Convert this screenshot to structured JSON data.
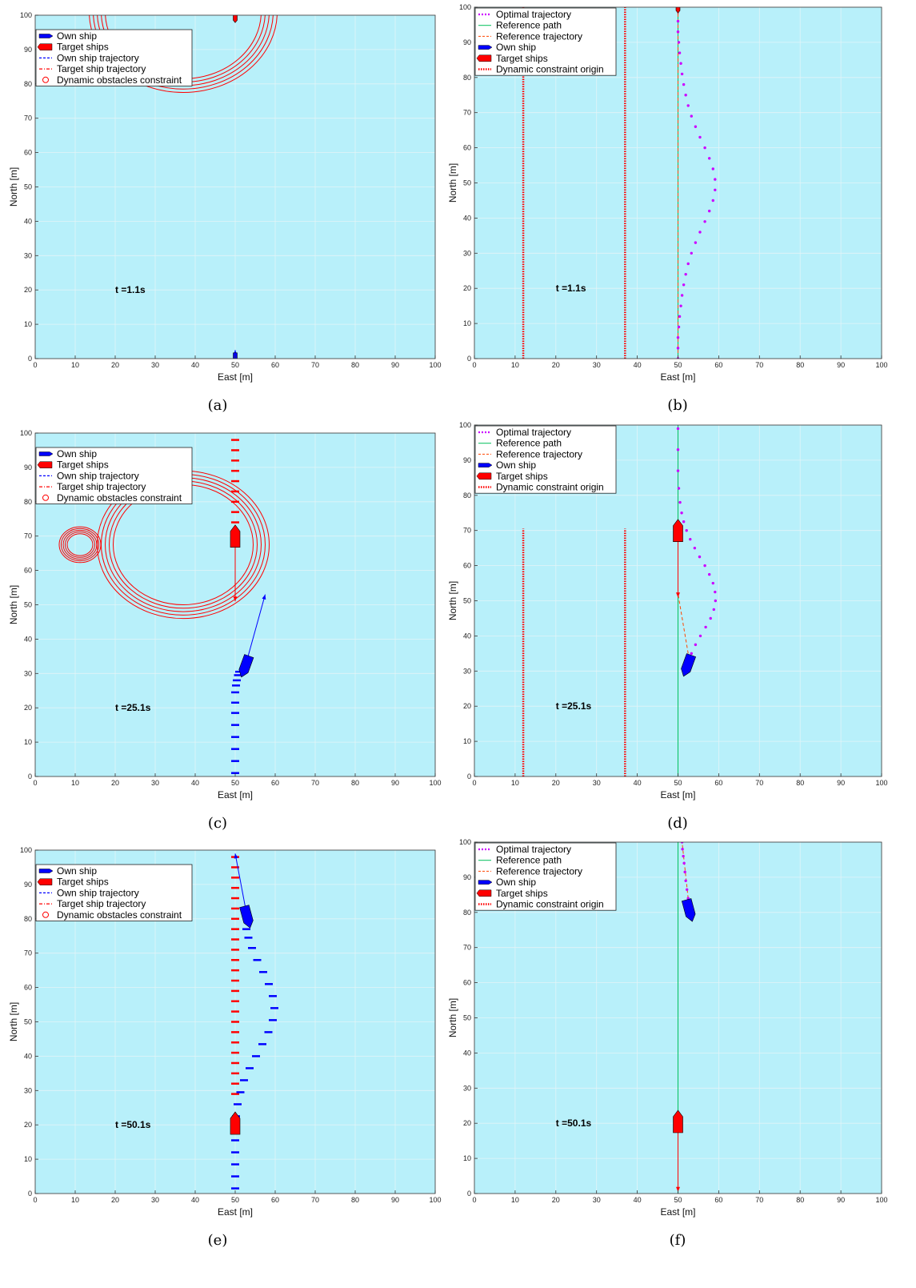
{
  "chart_data": [
    {
      "id": "a",
      "type": "scatter",
      "caption": "(a)",
      "time_label": "t =1.1s",
      "xlabel": "East [m]",
      "ylabel": "North [m]",
      "xlim": [
        0,
        100
      ],
      "ylim": [
        0,
        100
      ],
      "ticks": [
        0,
        10,
        20,
        30,
        40,
        50,
        60,
        70,
        80,
        90,
        100
      ],
      "grid": true,
      "legend": [
        "Own ship",
        "Target ships",
        "Own ship trajectory",
        "Target ship trajectory",
        "Dynamic obstacles constraint"
      ],
      "own_ship": {
        "x": 50,
        "y": 0.5,
        "arrow_to": [
          50,
          2.5
        ],
        "shape": "small"
      },
      "target_ship": {
        "x": 50,
        "y": 99,
        "arrow_to": [
          50,
          98
        ],
        "shape": "small"
      },
      "own_trajectory": [],
      "target_trajectory": [],
      "constraint_circles": [
        {
          "cx": 37,
          "cy": 101,
          "r": [
            19.5,
            20.5,
            21.5,
            22.5,
            23.5
          ],
          "squash": 1.0
        }
      ]
    },
    {
      "id": "b",
      "type": "line",
      "caption": "(b)",
      "time_label": "t =1.1s",
      "xlabel": "East [m]",
      "ylabel": "North [m]",
      "xlim": [
        0,
        100
      ],
      "ylim": [
        0,
        100
      ],
      "ticks": [
        0,
        10,
        20,
        30,
        40,
        50,
        60,
        70,
        80,
        90,
        100
      ],
      "grid": true,
      "legend": [
        "Optimal trajectory",
        "Reference path",
        "Reference trajectory",
        "Own ship",
        "Target ships",
        "Dynamic constraint origin"
      ],
      "optimal_trajectory": {
        "x": [
          50,
          50,
          50,
          50.2,
          50.4,
          50.7,
          51,
          51.4,
          51.9,
          52.5,
          53.3,
          54.3,
          55.4,
          56.6,
          57.7,
          58.6,
          59.1,
          59.1,
          58.6,
          57.7,
          56.6,
          55.4,
          54.3,
          53.3,
          52.5,
          51.9,
          51.4,
          51,
          50.7,
          50.4,
          50.2,
          50,
          50,
          50
        ],
        "y": [
          0,
          3,
          6,
          9,
          12,
          15,
          18,
          21,
          24,
          27,
          30,
          33,
          36,
          39,
          42,
          45,
          48,
          51,
          54,
          57,
          60,
          63,
          66,
          69,
          72,
          75,
          78,
          81,
          84,
          87,
          90,
          93,
          96,
          99
        ]
      },
      "reference_path": {
        "x": [
          50,
          50
        ],
        "y": [
          0,
          100
        ]
      },
      "reference_trajectory": {
        "x": [
          50,
          50
        ],
        "y": [
          0,
          100
        ]
      },
      "own_ship": null,
      "target_ship": {
        "x": 50,
        "y": 99.5,
        "arrow_to": [
          50,
          98
        ],
        "shape": "small"
      },
      "constraint_origin_lines": [
        {
          "x": 12,
          "y0": 0,
          "y1": 100
        },
        {
          "x": 37,
          "y0": 0,
          "y1": 100
        }
      ]
    },
    {
      "id": "c",
      "type": "scatter",
      "caption": "(c)",
      "time_label": "t =25.1s",
      "xlabel": "East [m]",
      "ylabel": "North [m]",
      "xlim": [
        0,
        100
      ],
      "ylim": [
        0,
        100
      ],
      "ticks": [
        0,
        10,
        20,
        30,
        40,
        50,
        60,
        70,
        80,
        90,
        100
      ],
      "grid": true,
      "legend": [
        "Own ship",
        "Target ships",
        "Own ship trajectory",
        "Target ship trajectory",
        "Dynamic obstacles constraint"
      ],
      "own_ship": {
        "x": 52.5,
        "y": 32,
        "heading_deg": 20,
        "arrow_to": [
          57.5,
          53
        ],
        "shape": "big"
      },
      "target_ship": {
        "x": 50,
        "y": 70,
        "heading_deg": 180,
        "arrow_to": [
          50,
          51
        ],
        "shape": "big"
      },
      "own_trajectory": {
        "x": [
          50,
          50,
          50,
          50,
          50,
          50,
          50,
          50,
          50.2,
          50.4,
          50.7,
          51
        ],
        "y": [
          1,
          4.5,
          8,
          11.5,
          15,
          18.5,
          21.5,
          24.5,
          26.5,
          28,
          29.5,
          30.5
        ]
      },
      "target_trajectory": {
        "x": [
          50,
          50,
          50,
          50,
          50,
          50,
          50,
          50,
          50,
          50,
          50
        ],
        "y": [
          98,
          95,
          92,
          89,
          86,
          83,
          80,
          77,
          74,
          71,
          68
        ]
      },
      "constraint_circles": [
        {
          "cx": 37,
          "cy": 67.5,
          "r": [
            17.5,
            18.5,
            19.5,
            20.5,
            21.5
          ],
          "squash": 1.0
        },
        {
          "cx": 11.2,
          "cy": 67.5,
          "r": [
            3.2,
            3.7,
            4.2,
            4.7,
            5.2
          ],
          "squash": 1.0
        }
      ]
    },
    {
      "id": "d",
      "type": "line",
      "caption": "(d)",
      "time_label": "t =25.1s",
      "xlabel": "East [m]",
      "ylabel": "North [m]",
      "xlim": [
        0,
        100
      ],
      "ylim": [
        0,
        100
      ],
      "ticks": [
        0,
        10,
        20,
        30,
        40,
        50,
        60,
        70,
        80,
        90,
        100
      ],
      "grid": true,
      "legend": [
        "Optimal trajectory",
        "Reference path",
        "Reference trajectory",
        "Own ship",
        "Target ships",
        "Dynamic constraint origin"
      ],
      "optimal_trajectory": {
        "x": [
          53.3,
          54.3,
          55.5,
          56.8,
          58,
          58.8,
          59.2,
          59.1,
          58.6,
          57.7,
          56.6,
          55.3,
          54.1,
          53,
          52.1,
          51.4,
          50.9,
          50.5,
          50.2,
          50,
          50,
          50
        ],
        "y": [
          35,
          37.5,
          40,
          42.5,
          45,
          47.5,
          50,
          52.5,
          55,
          57.5,
          60,
          62.5,
          65,
          67.5,
          70,
          72.5,
          75,
          78,
          82,
          87,
          93,
          99
        ]
      },
      "reference_path": {
        "x": [
          50,
          50
        ],
        "y": [
          0,
          100
        ]
      },
      "reference_trajectory": {
        "x": [
          52.5,
          50
        ],
        "y": [
          35,
          52
        ]
      },
      "own_ship": {
        "x": 52.3,
        "y": 31.5,
        "heading_deg": 20,
        "arrow_to": null,
        "shape": "big"
      },
      "target_ship": {
        "x": 50,
        "y": 70,
        "heading_deg": 180,
        "arrow_to": [
          50,
          51
        ],
        "shape": "big"
      },
      "constraint_origin_lines": [
        {
          "x": 12,
          "y0": 0,
          "y1": 70.5
        },
        {
          "x": 37,
          "y0": 0,
          "y1": 70.5
        }
      ]
    },
    {
      "id": "e",
      "type": "scatter",
      "caption": "(e)",
      "time_label": "t =50.1s",
      "xlabel": "East [m]",
      "ylabel": "North [m]",
      "xlim": [
        0,
        100
      ],
      "ylim": [
        0,
        100
      ],
      "ticks": [
        0,
        10,
        20,
        30,
        40,
        50,
        60,
        70,
        80,
        90,
        100
      ],
      "grid": true,
      "legend": [
        "Own ship",
        "Target ships",
        "Own ship trajectory",
        "Target ship trajectory",
        "Dynamic obstacles constraint"
      ],
      "own_ship": {
        "x": 53,
        "y": 80.5,
        "heading_deg": -15,
        "arrow_to": [
          50,
          99
        ],
        "shape": "big"
      },
      "target_ship": {
        "x": 50,
        "y": 20.5,
        "heading_deg": 180,
        "arrow_to": null,
        "shape": "big"
      },
      "own_trajectory": {
        "x": [
          50,
          50,
          50,
          50,
          50,
          50,
          50.2,
          50.6,
          51.3,
          52.2,
          53.6,
          55.2,
          56.8,
          58.3,
          59.4,
          59.8,
          59.4,
          58.4,
          57,
          55.5,
          54.2,
          53.3,
          52.8
        ],
        "y": [
          1.5,
          5,
          8.5,
          12,
          15.5,
          19,
          22.5,
          26,
          29.5,
          33,
          36.5,
          40,
          43.5,
          47,
          50.5,
          54,
          57.5,
          61,
          64.5,
          68,
          71.5,
          74.5,
          77
        ]
      },
      "target_trajectory": {
        "x": [
          50,
          50,
          50,
          50,
          50,
          50,
          50,
          50,
          50,
          50,
          50,
          50,
          50,
          50,
          50,
          50,
          50,
          50,
          50,
          50,
          50,
          50,
          50,
          50
        ],
        "y": [
          98,
          95,
          92,
          89,
          86,
          83,
          80,
          77,
          74,
          71,
          68,
          65,
          62,
          59,
          56,
          53,
          50,
          47,
          44,
          41,
          38,
          35,
          32,
          29
        ]
      },
      "constraint_circles": []
    },
    {
      "id": "f",
      "type": "line",
      "caption": "(f)",
      "time_label": "t =50.1s",
      "xlabel": "East [m]",
      "ylabel": "North [m]",
      "xlim": [
        0,
        100
      ],
      "ylim": [
        0,
        100
      ],
      "ticks": [
        0,
        10,
        20,
        30,
        40,
        50,
        60,
        70,
        80,
        90,
        100
      ],
      "grid": true,
      "legend": [
        "Optimal trajectory",
        "Reference path",
        "Reference trajectory",
        "Own ship",
        "Target ships",
        "Dynamic constraint origin"
      ],
      "optimal_trajectory": {
        "x": [
          52.5,
          52.2,
          51.9,
          51.7,
          51.5,
          51.3,
          51.1,
          51
        ],
        "y": [
          84,
          86.5,
          89,
          91.5,
          94,
          96,
          98,
          100
        ]
      },
      "reference_path": {
        "x": [
          50,
          50
        ],
        "y": [
          0,
          100
        ]
      },
      "reference_trajectory": {
        "x": [
          52.5,
          51
        ],
        "y": [
          84,
          100
        ]
      },
      "own_ship": {
        "x": 52.8,
        "y": 80.5,
        "heading_deg": -15,
        "arrow_to": null,
        "shape": "big"
      },
      "target_ship": {
        "x": 50,
        "y": 20.5,
        "heading_deg": 180,
        "arrow_to": [
          50,
          0.5
        ],
        "shape": "big"
      },
      "constraint_origin_lines": []
    }
  ],
  "colors": {
    "sea": "#b8f0fa",
    "grid": "#e2f4f8",
    "own": "#0000ff",
    "target": "#ff0000",
    "constraint": "#ff0000",
    "optimal": "#cc00ff",
    "ref_path": "#00c05a",
    "ref_traj": "#ff4500"
  }
}
